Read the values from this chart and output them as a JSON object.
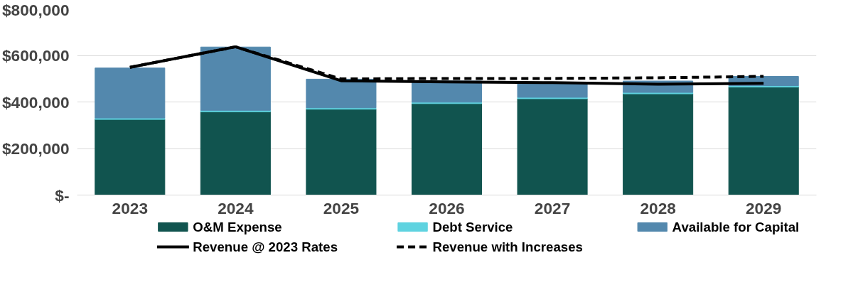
{
  "chart_data": {
    "type": "bar",
    "stacked": true,
    "categories": [
      "2023",
      "2024",
      "2025",
      "2026",
      "2027",
      "2028",
      "2029"
    ],
    "series": [
      {
        "name": "O&M Expense",
        "color": "#11544f",
        "values": [
          325000,
          358000,
          369000,
          393000,
          414000,
          435000,
          464000
        ]
      },
      {
        "name": "Debt Service",
        "color": "#5fd3e0",
        "values": [
          6000,
          6000,
          6000,
          6000,
          6000,
          6000,
          6000
        ]
      },
      {
        "name": "Available for Capital",
        "color": "#5388ad",
        "values": [
          215000,
          272000,
          123000,
          91000,
          63000,
          49000,
          40000
        ]
      },
      {
        "name": "Revenue @ 2023 Rates",
        "type": "line",
        "color": "#000000",
        "line_style": "solid",
        "values": [
          549000,
          637000,
          491000,
          486000,
          483000,
          476000,
          480000
        ]
      },
      {
        "name": "Revenue with Increases",
        "type": "line",
        "color": "#000000",
        "line_style": "dashed",
        "values": [
          549000,
          637000,
          499000,
          501000,
          501000,
          504000,
          510000
        ]
      }
    ],
    "ylim": [
      0,
      800000
    ],
    "yticks": [
      {
        "value": 0,
        "label": "$-"
      },
      {
        "value": 200000,
        "label": "$200,000"
      },
      {
        "value": 400000,
        "label": "$400,000"
      },
      {
        "value": 600000,
        "label": "$600,000"
      },
      {
        "value": 800000,
        "label": "$800,000"
      }
    ],
    "grid": "y",
    "legend": "bottom",
    "marker": "none"
  }
}
